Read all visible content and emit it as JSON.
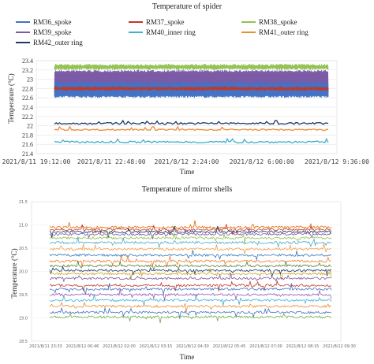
{
  "chart_data": [
    {
      "type": "line",
      "title": "Temperature of spider",
      "xlabel": "Time",
      "ylabel": "Temperature (°C)",
      "ylim": [
        21.4,
        23.4
      ],
      "yticks": [
        "21.4",
        "21.6",
        "21.8",
        "22",
        "22.2",
        "22.4",
        "22.6",
        "22.8",
        "23",
        "23.2",
        "23.4"
      ],
      "xticks": [
        "2021/8/11 19:12:00",
        "2021/8/11 22:48:00",
        "2021/8/12 2:24:00",
        "2021/8/12 6:00:00",
        "2021/8/12 9:36:00"
      ],
      "grid": true,
      "legend_position": "top",
      "series": [
        {
          "name": "RM36_spoke",
          "color": "#4472c4",
          "band": [
            22.6,
            22.95
          ]
        },
        {
          "name": "RM37_spoke",
          "color": "#c0392b",
          "band": [
            22.75,
            22.85
          ]
        },
        {
          "name": "RM38_spoke",
          "color": "#92c353",
          "band": [
            23.2,
            23.33
          ]
        },
        {
          "name": "RM39_spoke",
          "color": "#7b5aa6",
          "band": [
            22.7,
            23.2
          ]
        },
        {
          "name": "RM40_inner ring",
          "color": "#3fb0cf",
          "band": [
            21.63,
            21.67
          ]
        },
        {
          "name": "RM41_outer ring",
          "color": "#ed8b33",
          "band": [
            21.9,
            21.93
          ]
        },
        {
          "name": "RM42_outer ring",
          "color": "#1f3864",
          "band": [
            22.03,
            22.07
          ]
        }
      ]
    },
    {
      "type": "line",
      "title": "Temperature of mirror shells",
      "xlabel": "Time",
      "ylabel": "Temperature (°C)",
      "ylim": [
        18.5,
        21.5
      ],
      "yticks": [
        "18.5",
        "19.0",
        "19.5",
        "20.0",
        "20.5",
        "21.0",
        "21.5"
      ],
      "xticks": [
        "2021/8/11 23:33",
        "2021/8/12 00:46",
        "2021/8/12 02:00",
        "2021/8/12 03:15",
        "2021/8/12 04:30",
        "2021/8/12 05:45",
        "2021/8/12 07:00",
        "2021/8/12 08:15",
        "2021/8/12 09:30"
      ],
      "grid": true,
      "series_levels": [
        {
          "level": 20.95,
          "color": "#e36c09"
        },
        {
          "level": 20.9,
          "color": "#c0392b"
        },
        {
          "level": 20.85,
          "color": "#1f3864"
        },
        {
          "level": 20.8,
          "color": "#7b5aa6"
        },
        {
          "level": 20.72,
          "color": "#92c353"
        },
        {
          "level": 20.62,
          "color": "#4bacc6"
        },
        {
          "level": 20.48,
          "color": "#f0a04b"
        },
        {
          "level": 20.35,
          "color": "#2e75b6"
        },
        {
          "level": 20.22,
          "color": "#ed7d31"
        },
        {
          "level": 20.12,
          "color": "#548235"
        },
        {
          "level": 20.02,
          "color": "#1f3864"
        },
        {
          "level": 19.95,
          "color": "#c9a227"
        },
        {
          "level": 19.85,
          "color": "#7b5aa6"
        },
        {
          "level": 19.7,
          "color": "#c0392b"
        },
        {
          "level": 19.62,
          "color": "#4472c4"
        },
        {
          "level": 19.5,
          "color": "#9b59b6"
        },
        {
          "level": 19.38,
          "color": "#3fb0cf"
        },
        {
          "level": 19.25,
          "color": "#ed8b33"
        },
        {
          "level": 19.12,
          "color": "#4472c4"
        },
        {
          "level": 19.02,
          "color": "#70ad47"
        }
      ]
    }
  ]
}
